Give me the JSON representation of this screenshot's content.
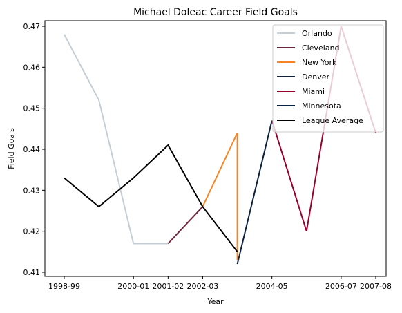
{
  "chart_data": {
    "type": "line",
    "title": "Michael Doleac Career Field Goals",
    "xlabel": "Year",
    "ylabel": "Field Goals",
    "x": [
      "1998-99",
      "1999-00",
      "2000-01",
      "2001-02",
      "2002-03",
      "2003-04",
      "2004-05",
      "2005-06",
      "2006-07",
      "2007-08"
    ],
    "x_tick_labels": [
      "1998-99",
      "2000-01",
      "2001-02",
      "2002-03",
      "2004-05",
      "2006-07",
      "2007-08"
    ],
    "ylim": [
      0.41,
      0.47
    ],
    "y_ticks": [
      "0.41",
      "0.42",
      "0.43",
      "0.44",
      "0.45",
      "0.46",
      "0.47"
    ],
    "legend_position": "top-right",
    "grid": false,
    "series": [
      {
        "name": "Orlando",
        "color": "#c4ced4",
        "points": [
          [
            0,
            0.468
          ],
          [
            1,
            0.452
          ],
          [
            2,
            0.417
          ],
          [
            3,
            0.417
          ]
        ]
      },
      {
        "name": "Cleveland",
        "color": "#6f263d",
        "points": [
          [
            3,
            0.417
          ],
          [
            4,
            0.426
          ]
        ]
      },
      {
        "name": "New York",
        "color": "#f58426",
        "points": [
          [
            4,
            0.426
          ],
          [
            5,
            0.444
          ],
          [
            5,
            0.413
          ]
        ]
      },
      {
        "name": "Denver",
        "color": "#0e2240",
        "points": [
          [
            5,
            0.412
          ],
          [
            6,
            0.447
          ]
        ]
      },
      {
        "name": "Miami",
        "color": "#98002e",
        "points": [
          [
            6,
            0.447
          ],
          [
            7,
            0.42
          ],
          [
            8,
            0.47
          ],
          [
            9,
            0.444
          ]
        ]
      },
      {
        "name": "Minnesota",
        "color": "#0c2340",
        "points": []
      },
      {
        "name": "League Average",
        "color": "#000000",
        "points": [
          [
            0,
            0.433
          ],
          [
            1,
            0.426
          ],
          [
            2,
            0.433
          ],
          [
            3,
            0.441
          ],
          [
            4,
            0.426
          ],
          [
            5,
            0.415
          ]
        ]
      }
    ]
  }
}
